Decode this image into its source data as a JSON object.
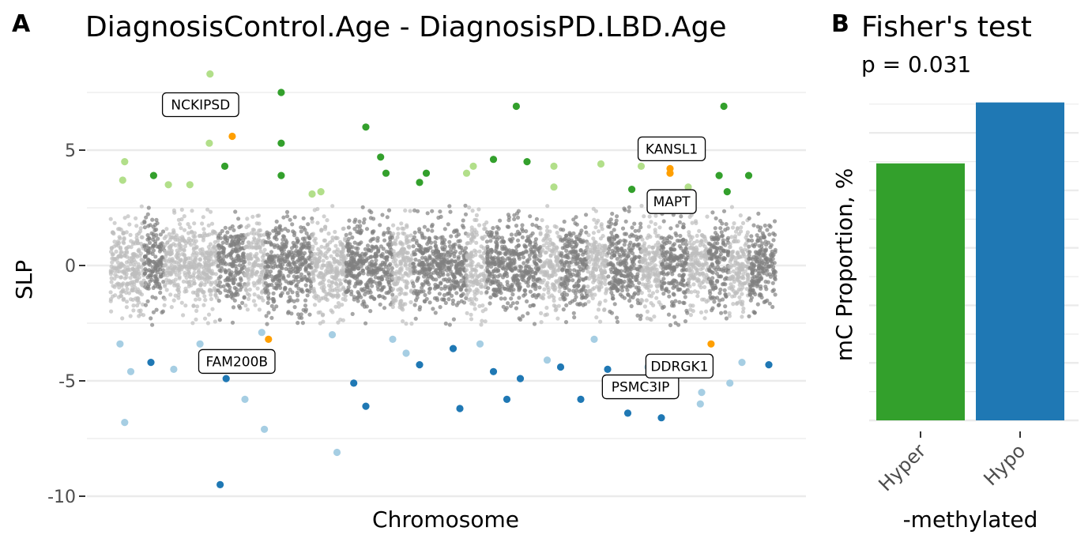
{
  "panel_a": {
    "letter": "A",
    "title": "DiagnosisControl.Age - DiagnosisPD.LBD.Age",
    "xlabel": "Chromosome",
    "ylabel": "SLP"
  },
  "panel_b": {
    "letter": "B",
    "title": "Fisher's test",
    "subtitle": "p = 0.031",
    "xlabel": "-methylated",
    "ylabel": "mC Proportion, %"
  },
  "colors": {
    "null_light": "#bdbdbd",
    "null_dark": "#808080",
    "hyper_light": "#b2df8a",
    "hyper_dark": "#33a02c",
    "hypo_light": "#a6cee3",
    "hypo_dark": "#1f78b4",
    "highlight": "#ff9f00",
    "grid": "#ebebeb"
  },
  "chart_data": [
    {
      "type": "scatter",
      "title": "DiagnosisControl.Age - DiagnosisPD.LBD.Age",
      "xlabel": "Chromosome",
      "ylabel": "SLP",
      "ylim": [
        -10.3,
        9.3
      ],
      "yticks": [
        5,
        0,
        -5,
        -10
      ],
      "ytick_labels": [
        "5",
        "0",
        "-5",
        "-10"
      ],
      "grid": true,
      "chromosomes": 22,
      "chromosome_x_ranges": [
        [
          0.0,
          0.05
        ],
        [
          0.05,
          0.08
        ],
        [
          0.08,
          0.16
        ],
        [
          0.16,
          0.2
        ],
        [
          0.2,
          0.23
        ],
        [
          0.23,
          0.3
        ],
        [
          0.3,
          0.35
        ],
        [
          0.35,
          0.42
        ],
        [
          0.42,
          0.45
        ],
        [
          0.45,
          0.53
        ],
        [
          0.53,
          0.56
        ],
        [
          0.56,
          0.64
        ],
        [
          0.64,
          0.67
        ],
        [
          0.67,
          0.71
        ],
        [
          0.71,
          0.74
        ],
        [
          0.74,
          0.79
        ],
        [
          0.79,
          0.82
        ],
        [
          0.82,
          0.86
        ],
        [
          0.86,
          0.89
        ],
        [
          0.89,
          0.92
        ],
        [
          0.92,
          0.95
        ],
        [
          0.95,
          0.99
        ]
      ],
      "null_band": [
        -2.6,
        2.6
      ],
      "labeled_points": [
        {
          "label": "NCKIPSD",
          "x": 0.181,
          "y": 5.6
        },
        {
          "label": "FAM200B",
          "x": 0.235,
          "y": -3.2
        },
        {
          "label": "KANSL1",
          "x": 0.833,
          "y": 4.2
        },
        {
          "label": "MAPT",
          "x": 0.833,
          "y": 4.0
        },
        {
          "label": "PSMC3IP",
          "x": 0.836,
          "y": -4.3
        },
        {
          "label": "DDRGK1",
          "x": 0.894,
          "y": -3.4
        }
      ],
      "significant_points": [
        {
          "x": 0.148,
          "y": 8.3
        },
        {
          "x": 0.254,
          "y": 7.5
        },
        {
          "x": 0.38,
          "y": 6.0
        },
        {
          "x": 0.604,
          "y": 6.9
        },
        {
          "x": 0.913,
          "y": 6.9
        },
        {
          "x": 0.254,
          "y": 5.3
        },
        {
          "x": 0.147,
          "y": 5.3
        },
        {
          "x": 0.021,
          "y": 4.5
        },
        {
          "x": 0.064,
          "y": 3.9
        },
        {
          "x": 0.086,
          "y": 3.5
        },
        {
          "x": 0.17,
          "y": 4.3
        },
        {
          "x": 0.254,
          "y": 3.9
        },
        {
          "x": 0.402,
          "y": 4.7
        },
        {
          "x": 0.41,
          "y": 4.0
        },
        {
          "x": 0.47,
          "y": 4.0
        },
        {
          "x": 0.54,
          "y": 4.3
        },
        {
          "x": 0.57,
          "y": 4.6
        },
        {
          "x": 0.62,
          "y": 4.5
        },
        {
          "x": 0.66,
          "y": 4.3
        },
        {
          "x": 0.73,
          "y": 4.4
        },
        {
          "x": 0.79,
          "y": 4.3
        },
        {
          "x": 0.906,
          "y": 3.9
        },
        {
          "x": 0.95,
          "y": 3.9
        },
        {
          "x": 0.018,
          "y": 3.7
        },
        {
          "x": 0.118,
          "y": 3.5
        },
        {
          "x": 0.313,
          "y": 3.2
        },
        {
          "x": 0.46,
          "y": 3.6
        },
        {
          "x": 0.53,
          "y": 4.0
        },
        {
          "x": 0.66,
          "y": 3.4
        },
        {
          "x": 0.776,
          "y": 3.3
        },
        {
          "x": 0.86,
          "y": 3.4
        },
        {
          "x": 0.918,
          "y": 3.2
        },
        {
          "x": 0.3,
          "y": 3.1
        },
        {
          "x": 0.014,
          "y": -3.4
        },
        {
          "x": 0.06,
          "y": -4.2
        },
        {
          "x": 0.094,
          "y": -4.5
        },
        {
          "x": 0.172,
          "y": -4.9
        },
        {
          "x": 0.133,
          "y": -3.4
        },
        {
          "x": 0.225,
          "y": -2.9
        },
        {
          "x": 0.33,
          "y": -3.0
        },
        {
          "x": 0.362,
          "y": -5.1
        },
        {
          "x": 0.38,
          "y": -6.1
        },
        {
          "x": 0.42,
          "y": -3.2
        },
        {
          "x": 0.46,
          "y": -4.3
        },
        {
          "x": 0.51,
          "y": -3.6
        },
        {
          "x": 0.55,
          "y": -3.4
        },
        {
          "x": 0.57,
          "y": -4.6
        },
        {
          "x": 0.59,
          "y": -5.8
        },
        {
          "x": 0.65,
          "y": -4.1
        },
        {
          "x": 0.67,
          "y": -4.4
        },
        {
          "x": 0.72,
          "y": -3.2
        },
        {
          "x": 0.74,
          "y": -4.5
        },
        {
          "x": 0.77,
          "y": -6.4
        },
        {
          "x": 0.82,
          "y": -6.6
        },
        {
          "x": 0.878,
          "y": -6.0
        },
        {
          "x": 0.922,
          "y": -5.1
        },
        {
          "x": 0.229,
          "y": -7.1
        },
        {
          "x": 0.163,
          "y": -9.5
        },
        {
          "x": 0.337,
          "y": -8.1
        },
        {
          "x": 0.021,
          "y": -6.8
        },
        {
          "x": 0.52,
          "y": -6.2
        },
        {
          "x": 0.7,
          "y": -5.8
        },
        {
          "x": 0.03,
          "y": -4.6
        },
        {
          "x": 0.2,
          "y": -5.8
        },
        {
          "x": 0.44,
          "y": -3.8
        },
        {
          "x": 0.61,
          "y": -4.9
        },
        {
          "x": 0.94,
          "y": -4.2
        },
        {
          "x": 0.98,
          "y": -4.3
        },
        {
          "x": 0.88,
          "y": -5.5
        },
        {
          "x": 0.8,
          "y": -4.4
        }
      ]
    },
    {
      "type": "bar",
      "title": "Fisher's test",
      "subtitle": "p = 0.031",
      "xlabel": "-methylated",
      "ylabel": "mC Proportion, %",
      "categories": [
        "Hyper",
        "Hypo"
      ],
      "values": [
        0.447,
        0.553
      ],
      "colors": [
        "#33a02c",
        "#1f78b4"
      ],
      "ylim": [
        0,
        0.58
      ],
      "ytick_labels_shown": false,
      "grid": true
    }
  ]
}
